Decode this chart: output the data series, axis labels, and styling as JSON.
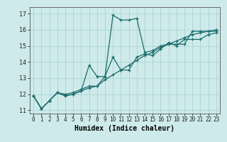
{
  "xlabel": "Humidex (Indice chaleur)",
  "ylabel": "",
  "bg_color": "#ceeaea",
  "line_color": "#1a6b6b",
  "grid_color": "#aad4d4",
  "xlim": [
    -0.5,
    23.5
  ],
  "ylim": [
    10.8,
    17.4
  ],
  "xticks": [
    0,
    1,
    2,
    3,
    4,
    5,
    6,
    7,
    8,
    9,
    10,
    11,
    12,
    13,
    14,
    15,
    16,
    17,
    18,
    19,
    20,
    21,
    22,
    23
  ],
  "yticks": [
    11,
    12,
    13,
    14,
    15,
    16,
    17
  ],
  "series1_x": [
    0,
    1,
    2,
    3,
    4,
    5,
    6,
    7,
    8,
    9,
    10,
    11,
    12,
    13,
    14,
    15,
    16,
    17,
    18,
    19,
    20,
    21,
    22,
    23
  ],
  "series1_y": [
    11.9,
    11.1,
    11.6,
    12.1,
    12.0,
    12.1,
    12.3,
    12.5,
    12.5,
    13.1,
    16.9,
    16.6,
    16.6,
    16.7,
    14.6,
    14.7,
    15.0,
    15.1,
    15.1,
    15.1,
    15.9,
    15.9,
    15.9,
    15.9
  ],
  "series2_x": [
    0,
    1,
    2,
    3,
    4,
    5,
    6,
    7,
    8,
    9,
    10,
    11,
    12,
    13,
    14,
    15,
    16,
    17,
    18,
    19,
    20,
    21,
    22,
    23
  ],
  "series2_y": [
    11.9,
    11.1,
    11.6,
    12.1,
    11.9,
    12.0,
    12.2,
    13.8,
    13.1,
    13.1,
    14.3,
    13.5,
    13.5,
    14.3,
    14.5,
    14.4,
    14.8,
    15.2,
    15.0,
    15.4,
    15.4,
    15.4,
    15.7,
    15.8
  ],
  "series3_x": [
    0,
    1,
    2,
    3,
    4,
    5,
    6,
    7,
    8,
    9,
    10,
    11,
    12,
    13,
    14,
    15,
    16,
    17,
    18,
    19,
    20,
    21,
    22,
    23
  ],
  "series3_y": [
    11.9,
    11.1,
    11.6,
    12.1,
    11.9,
    12.0,
    12.2,
    12.4,
    12.5,
    12.9,
    13.2,
    13.5,
    13.8,
    14.1,
    14.4,
    14.6,
    14.9,
    15.1,
    15.3,
    15.5,
    15.7,
    15.8,
    15.9,
    16.0
  ],
  "xlabel_fontsize": 7,
  "tick_fontsize": 5.5,
  "ytick_fontsize": 6
}
